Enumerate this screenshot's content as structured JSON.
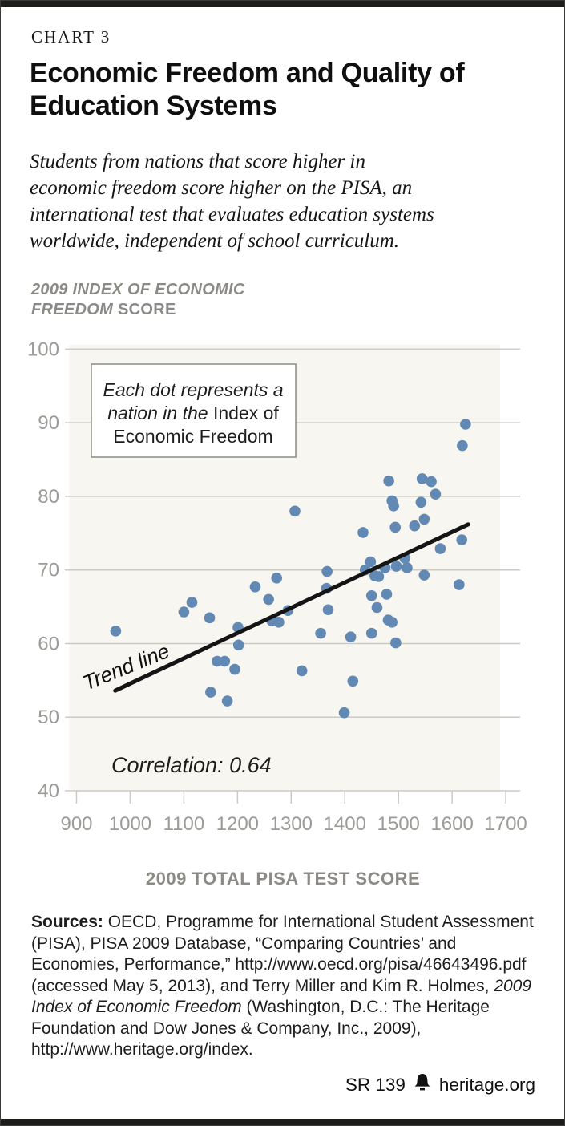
{
  "header": {
    "kicker": "CHART 3",
    "title_lines": [
      "Economic Freedom and Quality of",
      "Education Systems"
    ],
    "subtitle_lines": [
      "Students from nations that score higher in",
      "economic freedom score higher on the PISA, an",
      "international test that evaluates education systems",
      "worldwide, independent of school curriculum."
    ]
  },
  "y_axis_title": {
    "line1_italic": "2009 INDEX OF ECONOMIC",
    "line2_italic": "FREEDOM",
    "line2_plain": " SCORE"
  },
  "chart_data": {
    "type": "scatter",
    "title": "Economic Freedom and Quality of Education Systems",
    "xlabel": "2009 TOTAL PISA TEST SCORE",
    "ylabel": "2009 INDEX OF ECONOMIC FREEDOM SCORE",
    "xlim": [
      900,
      1700
    ],
    "ylim": [
      40,
      100
    ],
    "xticks": [
      900,
      1000,
      1100,
      1200,
      1300,
      1400,
      1500,
      1600,
      1700
    ],
    "yticks": [
      40,
      50,
      60,
      70,
      80,
      90,
      100
    ],
    "grid": "horizontal",
    "correlation": 0.64,
    "correlation_label": "Correlation: 0.64",
    "trend_label": "Trend line",
    "trend_line": {
      "x1": 972,
      "y1": 53.6,
      "x2": 1630,
      "y2": 76.2
    },
    "annotation_lines": [
      {
        "italic": "Each dot represents a",
        "plain": ""
      },
      {
        "italic": "nation in the ",
        "plain": "Index of"
      },
      {
        "italic": "",
        "plain": "Economic Freedom"
      }
    ],
    "points": [
      [
        973,
        61.7
      ],
      [
        1100,
        64.3
      ],
      [
        1115,
        65.6
      ],
      [
        1148,
        63.5
      ],
      [
        1150,
        53.4
      ],
      [
        1162,
        57.6
      ],
      [
        1176,
        57.6
      ],
      [
        1181,
        52.2
      ],
      [
        1195,
        56.5
      ],
      [
        1201,
        62.2
      ],
      [
        1202,
        59.8
      ],
      [
        1233,
        67.7
      ],
      [
        1258,
        66.0
      ],
      [
        1264,
        63.1
      ],
      [
        1273,
        68.9
      ],
      [
        1277,
        62.9
      ],
      [
        1294,
        64.5
      ],
      [
        1307,
        78.0
      ],
      [
        1320,
        56.3
      ],
      [
        1355,
        61.4
      ],
      [
        1366,
        67.5
      ],
      [
        1367,
        69.8
      ],
      [
        1369,
        64.6
      ],
      [
        1399,
        50.6
      ],
      [
        1411,
        60.9
      ],
      [
        1415,
        54.9
      ],
      [
        1434,
        75.1
      ],
      [
        1438,
        70.0
      ],
      [
        1448,
        71.1
      ],
      [
        1450,
        66.5
      ],
      [
        1450,
        61.4
      ],
      [
        1456,
        69.2
      ],
      [
        1460,
        64.9
      ],
      [
        1463,
        69.1
      ],
      [
        1475,
        70.3
      ],
      [
        1478,
        66.7
      ],
      [
        1481,
        63.2
      ],
      [
        1482,
        82.1
      ],
      [
        1488,
        79.4
      ],
      [
        1488,
        62.9
      ],
      [
        1491,
        78.7
      ],
      [
        1494,
        75.8
      ],
      [
        1495,
        60.1
      ],
      [
        1496,
        70.5
      ],
      [
        1512,
        71.6
      ],
      [
        1516,
        70.3
      ],
      [
        1530,
        76.0
      ],
      [
        1542,
        79.2
      ],
      [
        1544,
        82.4
      ],
      [
        1548,
        76.9
      ],
      [
        1548,
        69.3
      ],
      [
        1561,
        82.0
      ],
      [
        1569,
        80.3
      ],
      [
        1578,
        72.9
      ],
      [
        1613,
        68.0
      ],
      [
        1618,
        74.1
      ],
      [
        1619,
        86.9
      ],
      [
        1625,
        89.8
      ]
    ]
  },
  "sources": {
    "label": "Sources:",
    "text_before_italic": " OECD, Programme for International Student Assessment (PISA), PISA 2009 Database, “Comparing Countries’ and Economies, Performance,” http://www.oecd.org/pisa/46643496.pdf (accessed May 5, 2013), and Terry Miller and Kim R. Holmes, ",
    "italic": "2009 Index of Economic Freedom",
    "text_after_italic": " (Washington, D.C.: The Heritage Foundation and Dow Jones & Company, Inc., 2009), http://www.heritage.org/index."
  },
  "footer": {
    "report_id": "SR 139",
    "site": "heritage.org"
  },
  "colors": {
    "dot_blue": "#6189b4",
    "plot_background": "#f7f6f0",
    "gridline": "#cbcac5",
    "axis_text": "#9c9b97",
    "muted_label": "#8b8a86",
    "ink": "#1a1a1a"
  }
}
